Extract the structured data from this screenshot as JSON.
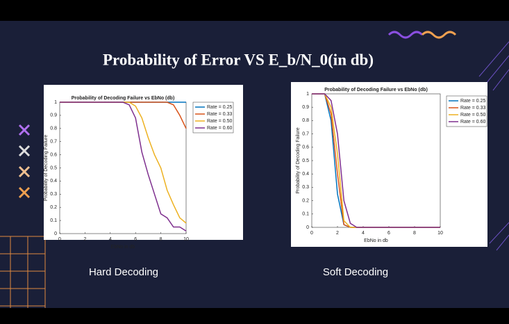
{
  "slide": {
    "title": "Probability of Error VS E_b/N_0(in db)",
    "captions": [
      "Hard Decoding",
      "Soft Decoding"
    ]
  },
  "chart_data": [
    {
      "type": "line",
      "title": "Probability of Decoding Failure vs EbNo (db)",
      "x_label": "EbNo in db",
      "y_label": "Probability of Decoding Failure",
      "x": [
        0,
        0.5,
        1,
        1.5,
        2,
        2.5,
        3,
        3.5,
        4,
        4.5,
        5,
        5.5,
        6,
        6.5,
        7,
        7.5,
        8,
        8.5,
        9,
        9.5,
        10
      ],
      "series": [
        {
          "name": "Rate = 0.25",
          "color": "#0072bd",
          "values": [
            1,
            1,
            1,
            1,
            1,
            1,
            1,
            1,
            1,
            1,
            1,
            1,
            1,
            1,
            1,
            1,
            1,
            1,
            1,
            1,
            1
          ]
        },
        {
          "name": "Rate = 0.33",
          "color": "#d95319",
          "values": [
            1,
            1,
            1,
            1,
            1,
            1,
            1,
            1,
            1,
            1,
            1,
            1,
            1,
            1,
            1,
            1,
            1,
            1,
            0.98,
            0.9,
            0.8
          ]
        },
        {
          "name": "Rate = 0.50",
          "color": "#edb120",
          "values": [
            1,
            1,
            1,
            1,
            1,
            1,
            1,
            1,
            1,
            1,
            1,
            1,
            0.97,
            0.88,
            0.73,
            0.6,
            0.5,
            0.33,
            0.22,
            0.12,
            0.08
          ]
        },
        {
          "name": "Rate = 0.60",
          "color": "#7e2f8e",
          "values": [
            1,
            1,
            1,
            1,
            1,
            1,
            1,
            1,
            1,
            1,
            1,
            0.98,
            0.88,
            0.62,
            0.45,
            0.3,
            0.15,
            0.12,
            0.05,
            0.05,
            0.02
          ]
        }
      ],
      "xlim": [
        0,
        10
      ],
      "xticks": [
        0,
        2,
        4,
        6,
        8,
        10
      ],
      "ylim": [
        0,
        1
      ],
      "yticks": [
        0,
        0.1,
        0.2,
        0.3,
        0.4,
        0.5,
        0.6,
        0.7,
        0.8,
        0.9,
        1
      ],
      "legend": "outside-upper-right"
    },
    {
      "type": "line",
      "title": "Probability of Decoding Failure vs EbNo (db)",
      "x_label": "EbNo in db",
      "y_label": "Probability of Decoding Failure",
      "x": [
        0,
        0.5,
        1,
        1.5,
        2,
        2.5,
        3,
        3.5,
        4,
        4.5,
        5,
        5.5,
        6,
        6.5,
        7,
        7.5,
        8,
        8.5,
        9,
        9.5,
        10
      ],
      "series": [
        {
          "name": "Rate = 0.25",
          "color": "#0072bd",
          "values": [
            1,
            1,
            1,
            0.8,
            0.25,
            0.02,
            0,
            0,
            0,
            0,
            0,
            0,
            0,
            0,
            0,
            0,
            0,
            0,
            0,
            0,
            0
          ]
        },
        {
          "name": "Rate = 0.33",
          "color": "#d95319",
          "values": [
            1,
            1,
            1,
            0.85,
            0.4,
            0.02,
            0,
            0,
            0,
            0,
            0,
            0,
            0,
            0,
            0,
            0,
            0,
            0,
            0,
            0,
            0
          ]
        },
        {
          "name": "Rate = 0.50",
          "color": "#edb120",
          "values": [
            1,
            1,
            1,
            0.9,
            0.55,
            0.05,
            0,
            0,
            0,
            0,
            0,
            0,
            0,
            0,
            0,
            0,
            0,
            0,
            0,
            0,
            0
          ]
        },
        {
          "name": "Rate = 0.60",
          "color": "#7e2f8e",
          "values": [
            1,
            1,
            1,
            0.95,
            0.7,
            0.2,
            0.03,
            0,
            0,
            0,
            0,
            0,
            0,
            0,
            0,
            0,
            0,
            0,
            0,
            0,
            0
          ]
        }
      ],
      "xlim": [
        0,
        10
      ],
      "xticks": [
        0,
        2,
        4,
        6,
        8,
        10
      ],
      "ylim": [
        0,
        1
      ],
      "yticks": [
        0,
        0.1,
        0.2,
        0.3,
        0.4,
        0.5,
        0.6,
        0.7,
        0.8,
        0.9,
        1
      ],
      "legend": "outside-upper-right"
    }
  ]
}
